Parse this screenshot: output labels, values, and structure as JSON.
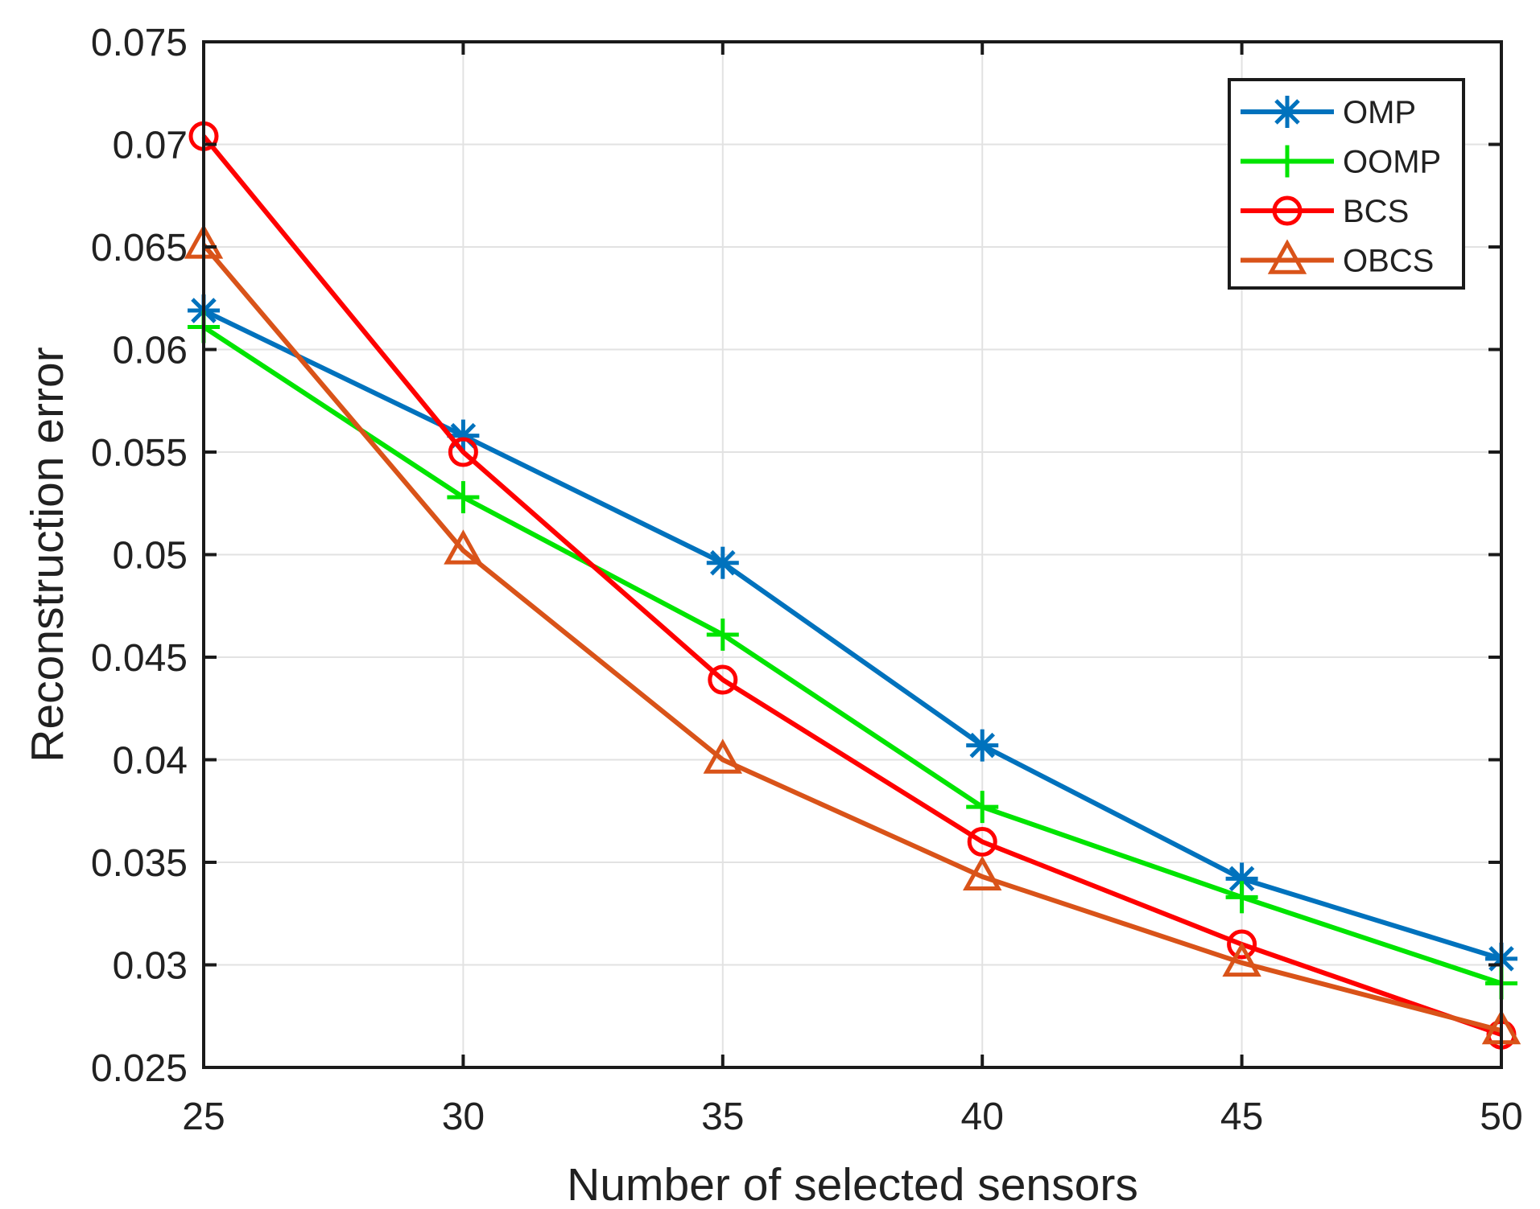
{
  "figure": {
    "background": "#ffffff",
    "axis_color": "#1a1a1a",
    "grid_color": "#e2e2e2",
    "text_color": "#212121"
  },
  "chart_data": {
    "type": "line",
    "title": "",
    "xlabel": "Number of selected sensors",
    "ylabel": "Reconstruction error",
    "xlim": [
      25,
      50
    ],
    "ylim": [
      0.025,
      0.075
    ],
    "grid": true,
    "legend_position": "top-right",
    "legend_entries": [
      "OMP",
      "OOMP",
      "BCS",
      "OBCS"
    ],
    "xticks": [
      {
        "value": 25,
        "label": "25"
      },
      {
        "value": 30,
        "label": "30"
      },
      {
        "value": 35,
        "label": "35"
      },
      {
        "value": 40,
        "label": "40"
      },
      {
        "value": 45,
        "label": "45"
      },
      {
        "value": 50,
        "label": "50"
      }
    ],
    "yticks": [
      {
        "value": 0.025,
        "label": "0.025"
      },
      {
        "value": 0.03,
        "label": "0.03"
      },
      {
        "value": 0.035,
        "label": "0.035"
      },
      {
        "value": 0.04,
        "label": "0.04"
      },
      {
        "value": 0.045,
        "label": "0.045"
      },
      {
        "value": 0.05,
        "label": "0.05"
      },
      {
        "value": 0.055,
        "label": "0.055"
      },
      {
        "value": 0.06,
        "label": "0.06"
      },
      {
        "value": 0.065,
        "label": "0.065"
      },
      {
        "value": 0.07,
        "label": "0.07"
      },
      {
        "value": 0.075,
        "label": "0.075"
      }
    ],
    "x": [
      25,
      30,
      35,
      40,
      45,
      50
    ],
    "series": [
      {
        "name": "OMP",
        "color": "#0072BD",
        "marker": "asterisk",
        "values": [
          0.0619,
          0.0558,
          0.0496,
          0.0407,
          0.0342,
          0.0303
        ]
      },
      {
        "name": "OOMP",
        "color": "#00E400",
        "marker": "plus",
        "values": [
          0.0611,
          0.0528,
          0.0461,
          0.0377,
          0.0333,
          0.0291
        ]
      },
      {
        "name": "BCS",
        "color": "#FF0000",
        "marker": "circle",
        "values": [
          0.0704,
          0.055,
          0.0439,
          0.036,
          0.031,
          0.0266
        ]
      },
      {
        "name": "OBCS",
        "color": "#D95319",
        "marker": "triangle",
        "values": [
          0.0651,
          0.0502,
          0.04,
          0.0343,
          0.0301,
          0.0268
        ]
      }
    ]
  }
}
